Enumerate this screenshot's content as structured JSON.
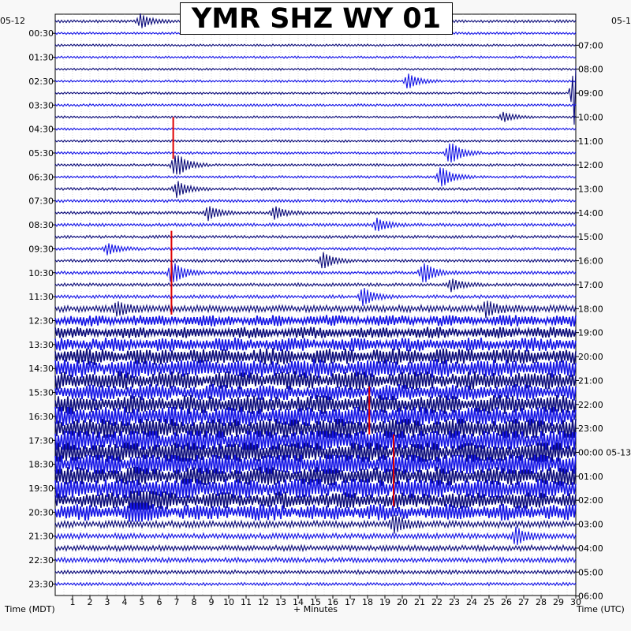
{
  "chart_data": {
    "type": "line",
    "title": "YMR SHZ WY 01",
    "xlabel": "+ Minutes",
    "left_axis_title": "Time (MDT)",
    "right_axis_title": "Time (UTC)",
    "left_date": "05-12",
    "right_start_date": "05-1",
    "right_rollover_date": "05-13",
    "xlim": [
      0,
      30
    ],
    "x_ticks": [
      "1",
      "2",
      "3",
      "4",
      "5",
      "6",
      "7",
      "8",
      "9",
      "10",
      "11",
      "12",
      "13",
      "14",
      "15",
      "16",
      "17",
      "18",
      "19",
      "20",
      "21",
      "22",
      "23",
      "24",
      "25",
      "26",
      "27",
      "28",
      "29",
      "30"
    ],
    "left_ticks": [
      "00:30",
      "01:30",
      "02:30",
      "03:30",
      "04:30",
      "05:30",
      "06:30",
      "07:30",
      "08:30",
      "09:30",
      "10:30",
      "11:30",
      "12:30",
      "13:30",
      "14:30",
      "15:30",
      "16:30",
      "17:30",
      "18:30",
      "19:30",
      "20:30",
      "21:30",
      "22:30",
      "23:30"
    ],
    "right_ticks": [
      "07:00",
      "08:00",
      "09:00",
      "10:00",
      "11:00",
      "12:00",
      "13:00",
      "14:00",
      "15:00",
      "16:00",
      "17:00",
      "18:00",
      "19:00",
      "20:00",
      "21:00",
      "22:00",
      "23:00",
      "00:00 05-13",
      "01:00",
      "02:00",
      "03:00",
      "04:00",
      "05:00",
      "06:00"
    ],
    "trace_count": 48,
    "trace_colors": [
      "#0b0b7a",
      "#1414e6"
    ],
    "marker_color": "#e00000",
    "grid": true,
    "activity_per_trace": [
      1.2,
      1.0,
      1.0,
      1.0,
      1.0,
      1.0,
      1.0,
      1.1,
      1.0,
      1.0,
      1.0,
      1.1,
      1.1,
      1.1,
      1.2,
      1.3,
      1.3,
      1.4,
      1.3,
      1.3,
      1.3,
      1.4,
      1.4,
      1.5,
      3,
      4,
      4,
      5,
      6,
      7,
      7,
      6,
      7,
      8,
      8,
      9,
      8,
      9,
      7,
      8,
      6,
      6,
      3,
      2.5,
      2.5,
      2.2,
      1.8,
      1.4
    ],
    "events": [
      {
        "trace": 0,
        "minute": 4.9,
        "amp": 9
      },
      {
        "trace": 5,
        "minute": 20.3,
        "amp": 10
      },
      {
        "trace": 6,
        "minute": 29.9,
        "amp": 40
      },
      {
        "trace": 8,
        "minute": 25.8,
        "amp": 6
      },
      {
        "trace": 11,
        "minute": 22.7,
        "amp": 16
      },
      {
        "trace": 12,
        "minute": 6.9,
        "amp": 18
      },
      {
        "trace": 13,
        "minute": 22.2,
        "amp": 14
      },
      {
        "trace": 14,
        "minute": 7.0,
        "amp": 10
      },
      {
        "trace": 16,
        "minute": 8.8,
        "amp": 9
      },
      {
        "trace": 16,
        "minute": 12.6,
        "amp": 8
      },
      {
        "trace": 17,
        "minute": 18.5,
        "amp": 8
      },
      {
        "trace": 19,
        "minute": 3.0,
        "amp": 7
      },
      {
        "trace": 20,
        "minute": 15.4,
        "amp": 11
      },
      {
        "trace": 21,
        "minute": 6.7,
        "amp": 16
      },
      {
        "trace": 21,
        "minute": 21.2,
        "amp": 14
      },
      {
        "trace": 22,
        "minute": 22.8,
        "amp": 8
      },
      {
        "trace": 23,
        "minute": 17.7,
        "amp": 12
      },
      {
        "trace": 24,
        "minute": 3.5,
        "amp": 8
      },
      {
        "trace": 24,
        "minute": 24.8,
        "amp": 9
      },
      {
        "trace": 40,
        "minute": 4.5,
        "amp": 25
      },
      {
        "trace": 41,
        "minute": 4.4,
        "amp": 18
      },
      {
        "trace": 42,
        "minute": 19.5,
        "amp": 12
      },
      {
        "trace": 43,
        "minute": 26.5,
        "amp": 11
      }
    ],
    "markers": [
      {
        "minute": 6.8,
        "trace_start": 8,
        "trace_end": 11.5
      },
      {
        "minute": 6.7,
        "trace_start": 17.5,
        "trace_end": 24.5
      },
      {
        "minute": 18.1,
        "trace_start": 30.5,
        "trace_end": 34.5
      },
      {
        "minute": 19.5,
        "trace_start": 34.5,
        "trace_end": 40.5
      }
    ]
  }
}
